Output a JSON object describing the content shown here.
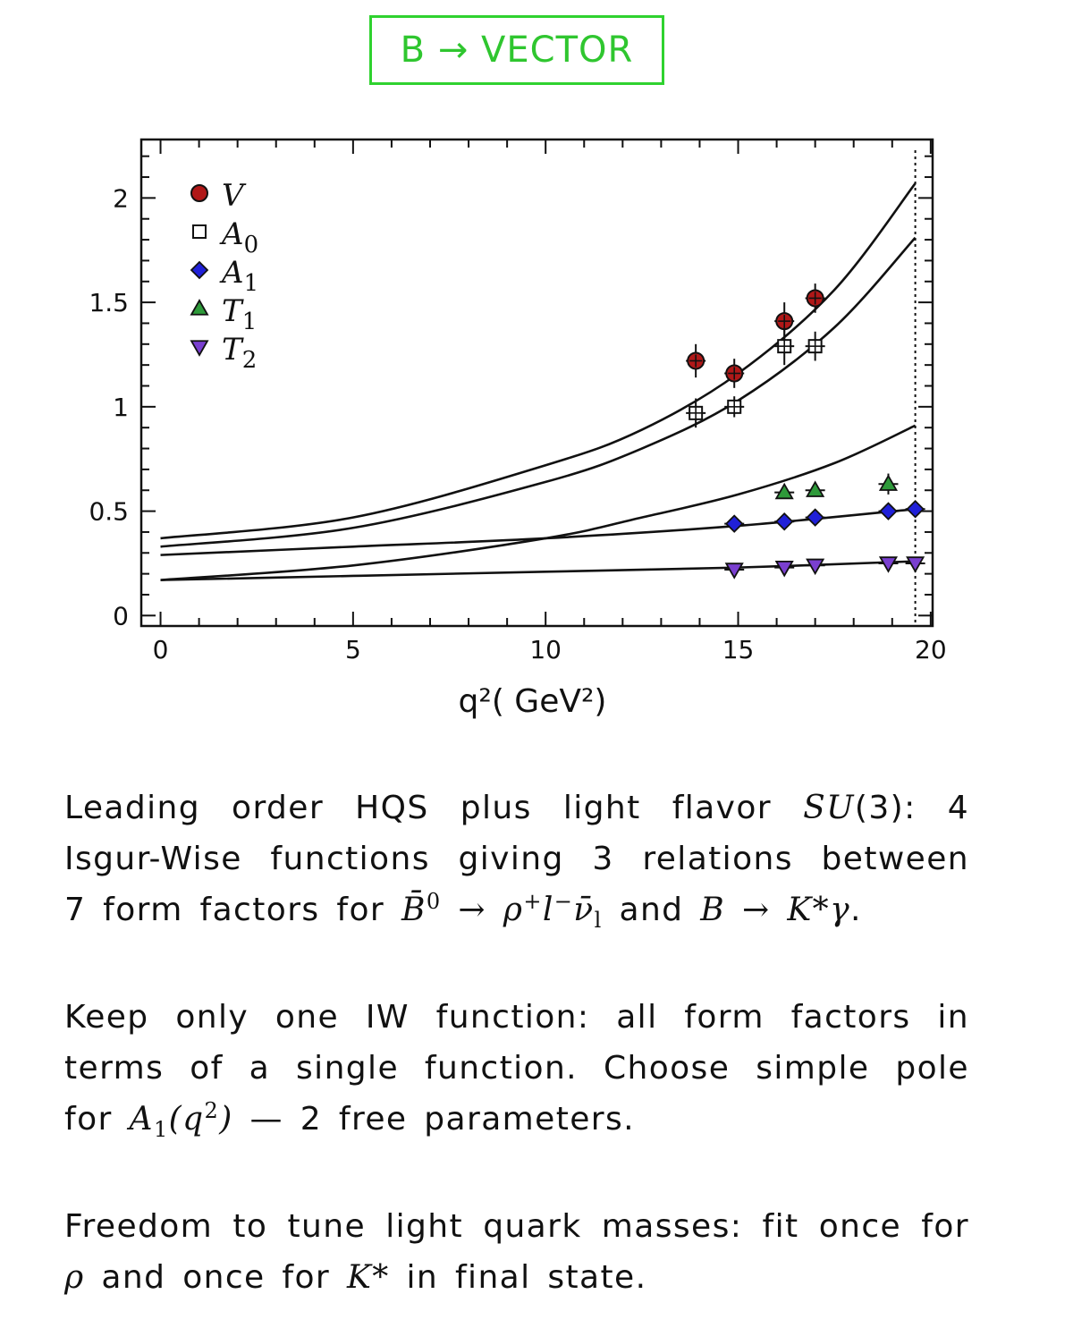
{
  "header": {
    "title": "B → VECTOR"
  },
  "chart_data": {
    "type": "scatter",
    "xlabel": "q²( GeV²)",
    "ylabel": "",
    "xlim": [
      -0.5,
      20.05
    ],
    "ylim": [
      -0.05,
      2.28
    ],
    "xticks": [
      "0",
      "5",
      "10",
      "15",
      "20"
    ],
    "yticks": [
      "0",
      "0.5",
      "1",
      "1.5",
      "2"
    ],
    "xtick_values": [
      0,
      5,
      10,
      15,
      20
    ],
    "ytick_values": [
      0,
      0.5,
      1,
      1.5,
      2
    ],
    "endpoint_line_x": 19.6,
    "legend_position": "top-left",
    "series": [
      {
        "name": "V",
        "marker": "circle",
        "color": "#b01818",
        "points": [
          [
            13.9,
            1.22
          ],
          [
            14.9,
            1.16
          ],
          [
            16.2,
            1.41
          ],
          [
            17.0,
            1.52
          ]
        ],
        "errors": [
          0.08,
          0.07,
          0.09,
          0.07
        ]
      },
      {
        "name": "A0",
        "marker": "open-square",
        "color": "#ffffff",
        "points": [
          [
            13.9,
            0.97
          ],
          [
            14.9,
            1.0
          ],
          [
            16.2,
            1.29
          ],
          [
            17.0,
            1.29
          ]
        ],
        "errors": [
          0.07,
          0.05,
          0.09,
          0.07
        ]
      },
      {
        "name": "A1",
        "marker": "diamond",
        "color": "#2020d8",
        "points": [
          [
            14.9,
            0.44
          ],
          [
            16.2,
            0.45
          ],
          [
            17.0,
            0.47
          ],
          [
            18.9,
            0.5
          ],
          [
            19.6,
            0.51
          ]
        ],
        "errors": [
          0.02,
          0.02,
          0.02,
          0.02,
          0.02
        ]
      },
      {
        "name": "T1",
        "marker": "triangle-up",
        "color": "#2e9a3a",
        "points": [
          [
            16.2,
            0.59
          ],
          [
            17.0,
            0.6
          ],
          [
            18.9,
            0.63
          ]
        ],
        "errors": [
          0.03,
          0.03,
          0.05
        ]
      },
      {
        "name": "T2",
        "marker": "triangle-down",
        "color": "#7a3fd0",
        "points": [
          [
            14.9,
            0.22
          ],
          [
            16.2,
            0.23
          ],
          [
            17.0,
            0.24
          ],
          [
            18.9,
            0.25
          ],
          [
            19.6,
            0.25
          ]
        ],
        "errors": [
          0.02,
          0.02,
          0.02,
          0.02,
          0.02
        ]
      }
    ],
    "fit_curves": [
      {
        "points": [
          [
            0,
            0.37
          ],
          [
            5,
            0.47
          ],
          [
            10,
            0.72
          ],
          [
            12.5,
            0.89
          ],
          [
            15,
            1.16
          ],
          [
            17.5,
            1.56
          ],
          [
            19.6,
            2.07
          ]
        ]
      },
      {
        "points": [
          [
            0,
            0.33
          ],
          [
            5,
            0.42
          ],
          [
            10,
            0.64
          ],
          [
            12.5,
            0.8
          ],
          [
            15,
            1.03
          ],
          [
            17.5,
            1.38
          ],
          [
            19.6,
            1.81
          ]
        ]
      },
      {
        "points": [
          [
            0,
            0.17
          ],
          [
            5,
            0.24
          ],
          [
            10,
            0.37
          ],
          [
            12.5,
            0.47
          ],
          [
            15,
            0.58
          ],
          [
            17.5,
            0.73
          ],
          [
            19.6,
            0.91
          ]
        ]
      },
      {
        "points": [
          [
            0,
            0.29
          ],
          [
            5,
            0.33
          ],
          [
            10,
            0.37
          ],
          [
            15,
            0.43
          ],
          [
            19.6,
            0.51
          ]
        ]
      },
      {
        "points": [
          [
            0,
            0.17
          ],
          [
            5,
            0.19
          ],
          [
            10,
            0.21
          ],
          [
            15,
            0.23
          ],
          [
            19.6,
            0.26
          ]
        ]
      }
    ]
  },
  "text": {
    "p1": {
      "l1a": "Leading order HQS plus light flavor ",
      "l1m": "SU",
      "l1b": "(3):  4",
      "l2": "Isgur-Wise functions giving 3 relations between",
      "l3a": "7 form factors for ",
      "l3m1": "B̄",
      "l3s1": "0",
      "l3m2": " → ρ",
      "l3s2": "+",
      "l3m3": "l",
      "l3s3": "−",
      "l3m4": "ν̄",
      "l3s4": "l",
      "l3b": " and ",
      "l3m5": "B → K*γ",
      "l3c": "."
    },
    "p2": {
      "l1": "Keep only one IW function:  all form factors in",
      "l2": "terms of a single function.  Choose simple pole",
      "l3a": "for ",
      "l3m1": "A",
      "l3s1": "1",
      "l3m2": "(q",
      "l3s2": "2",
      "l3m3": ")",
      "l3b": " — 2 free parameters."
    },
    "p3": {
      "l1": "Freedom to tune light quark masses:  fit once for",
      "l2m1": "ρ",
      "l2a": " and once for ",
      "l2m2": "K*",
      "l2b": " in final state."
    }
  }
}
